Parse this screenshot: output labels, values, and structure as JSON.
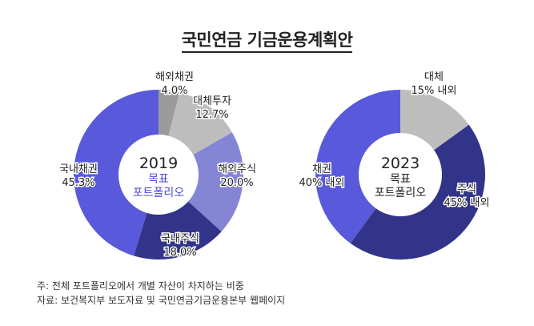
{
  "title": "국민연금 기금운용계획안",
  "chart_data": [
    {
      "type": "pie",
      "donut": true,
      "center_label": {
        "year": "2019",
        "sub1": "목표",
        "sub2": "포트폴리오",
        "sub_color": "#4b4bd6"
      },
      "slices": [
        {
          "label": "해외채권",
          "value": 4.0,
          "value_label": "4.0%",
          "color": "#9b9b9b"
        },
        {
          "label": "대체투자",
          "value": 12.7,
          "value_label": "12.7%",
          "color": "#bdbdbd"
        },
        {
          "label": "해외주식",
          "value": 20.0,
          "value_label": "20.0%",
          "color": "#8585d6"
        },
        {
          "label": "국내주식",
          "value": 18.0,
          "value_label": "18.0%",
          "color": "#323489"
        },
        {
          "label": "국내채권",
          "value": 45.3,
          "value_label": "45.3%",
          "color": "#5959dc"
        }
      ]
    },
    {
      "type": "pie",
      "donut": true,
      "center_label": {
        "year": "2023",
        "sub1": "목표",
        "sub2": "포트폴리오",
        "sub_color": "#222222"
      },
      "slices": [
        {
          "label": "대체",
          "value": 15,
          "value_label": "15% 내외",
          "color": "#bdbdbd"
        },
        {
          "label": "주식",
          "value": 45,
          "value_label": "45% 내외",
          "color": "#323489"
        },
        {
          "label": "채권",
          "value": 40,
          "value_label": "40% 내외",
          "color": "#5959dc"
        }
      ]
    }
  ],
  "notes": [
    "주: 전체 포트폴리오에서 개별 자산이 차지하는 비중",
    "자료: 보건복지부 보도자료 및 국민연금기금운용본부 웹페이지"
  ]
}
